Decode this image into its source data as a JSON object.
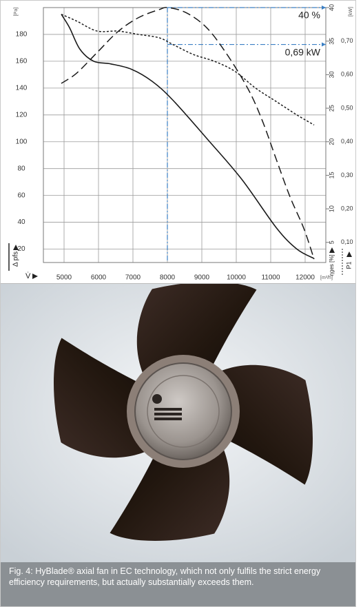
{
  "chart_data": {
    "type": "line",
    "x_unit": "[m³/h]",
    "x_label": "V̇",
    "y_unit": "[Pa]",
    "y_label": "Δ pfs",
    "y2_label": "ηges [%]",
    "y3_unit": "[kW]",
    "y3_label": "P1",
    "xlim": [
      4400,
      12600
    ],
    "xticks": [
      5000,
      6000,
      7000,
      8000,
      9000,
      10000,
      11000,
      12000
    ],
    "ylim": [
      10,
      200
    ],
    "yticks": [
      20,
      40,
      60,
      80,
      100,
      120,
      140,
      160,
      180
    ],
    "y2lim": [
      2,
      40
    ],
    "y2ticks": [
      5,
      10,
      15,
      20,
      25,
      30,
      35,
      40
    ],
    "y3lim": [
      0.04,
      0.8
    ],
    "y3ticks": [
      {
        "value": 0.1,
        "label": "0,10"
      },
      {
        "value": 0.2,
        "label": "0,20"
      },
      {
        "value": 0.3,
        "label": "0,30"
      },
      {
        "value": 0.4,
        "label": "0,40"
      },
      {
        "value": 0.5,
        "label": "0,50"
      },
      {
        "value": 0.6,
        "label": "0,60"
      },
      {
        "value": 0.7,
        "label": "0,70"
      }
    ],
    "grid": true,
    "series": [
      {
        "axis": "y",
        "style": "solid",
        "color": "#1a1a1a",
        "x": [
          4920,
          5160,
          5460,
          5860,
          6360,
          6960,
          7560,
          8160,
          9160,
          10160,
          11160,
          11760,
          12260
        ],
        "y": [
          195,
          185,
          169,
          160,
          158,
          154,
          145,
          131,
          102,
          72,
          36,
          20,
          13
        ]
      },
      {
        "axis": "y2",
        "style": "dashed",
        "color": "#1a1a1a",
        "x": [
          4920,
          5360,
          5960,
          6560,
          7160,
          7760,
          8020,
          8560,
          9160,
          9760,
          10360,
          10760,
          11160,
          11560,
          11960,
          12260
        ],
        "y": [
          28.7,
          30.2,
          33.3,
          36.4,
          38.5,
          39.7,
          40,
          39.2,
          36.9,
          32.8,
          27.7,
          23.1,
          17.4,
          11.8,
          7.1,
          2.5
        ]
      },
      {
        "axis": "y3",
        "style": "dotted",
        "color": "#1a1a1a",
        "x": [
          4920,
          5360,
          5960,
          6560,
          7160,
          7760,
          8160,
          8760,
          9360,
          9960,
          10560,
          11160,
          11760,
          12260
        ],
        "y": [
          0.78,
          0.76,
          0.73,
          0.73,
          0.72,
          0.71,
          0.69,
          0.66,
          0.64,
          0.61,
          0.56,
          0.52,
          0.48,
          0.45
        ]
      }
    ],
    "annotations": [
      {
        "text": "40 %",
        "x": 8000,
        "y": 40,
        "axis": "y2",
        "color": "#3a7fc4"
      },
      {
        "text": "0,69 kW",
        "x": 8000,
        "y": 0.69,
        "axis": "y3",
        "color": "#3a7fc4"
      }
    ]
  },
  "caption": "Fig. 4: HyBlade® axial fan in EC technology, which not only fulfils the strict energy efficiency requirements, but actually substantially exceeds them."
}
